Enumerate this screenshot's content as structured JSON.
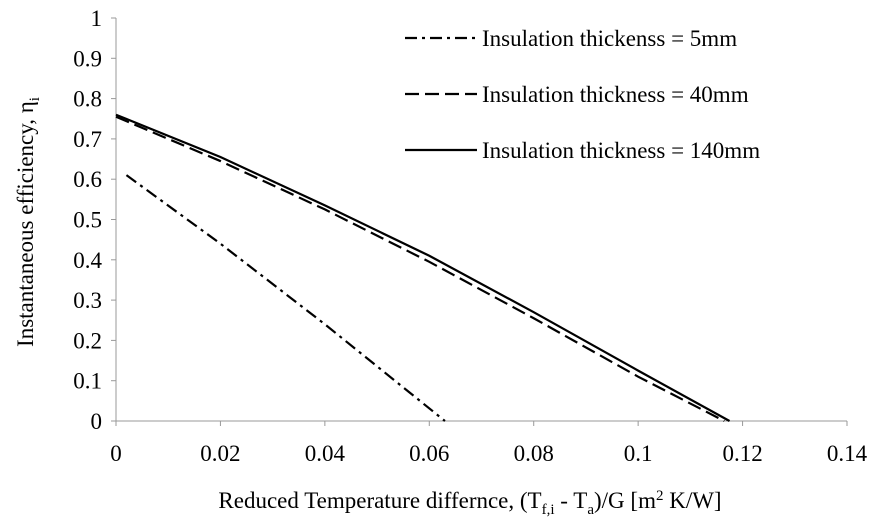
{
  "chart_data": {
    "type": "line",
    "xlabel": [
      "Reduced Temperature differnce, (T",
      "f,i",
      " - T",
      "a",
      ")/G [m",
      "2",
      " K/W]"
    ],
    "ylabel": [
      "Instantaneous efficiency, η",
      "i"
    ],
    "series": [
      {
        "name": "Insulation thickenss = 5mm",
        "color": "#000000",
        "dash": "dashdot",
        "x": [
          0.002,
          0.02,
          0.04,
          0.063
        ],
        "values": [
          0.61,
          0.44,
          0.24,
          0
        ]
      },
      {
        "name": "Insulation thickness = 40mm",
        "color": "#000000",
        "dash": "dashed",
        "x": [
          0,
          0.02,
          0.04,
          0.06,
          0.08,
          0.1,
          0.1165
        ],
        "values": [
          0.755,
          0.645,
          0.525,
          0.395,
          0.255,
          0.11,
          0
        ]
      },
      {
        "name": "Insulation thickness = 140mm",
        "color": "#000000",
        "dash": "solid",
        "x": [
          0,
          0.02,
          0.04,
          0.06,
          0.08,
          0.1,
          0.1175
        ],
        "values": [
          0.76,
          0.655,
          0.535,
          0.41,
          0.27,
          0.125,
          0
        ]
      }
    ],
    "xlim": [
      0,
      0.14
    ],
    "xticks": [
      0,
      0.02,
      0.04,
      0.06,
      0.08,
      0.1,
      0.12,
      0.14
    ],
    "ylim": [
      0,
      1
    ],
    "yticks": [
      0,
      0.1,
      0.2,
      0.3,
      0.4,
      0.5,
      0.6,
      0.7,
      0.8,
      0.9,
      1
    ],
    "grid": false,
    "legend": "upper right"
  }
}
